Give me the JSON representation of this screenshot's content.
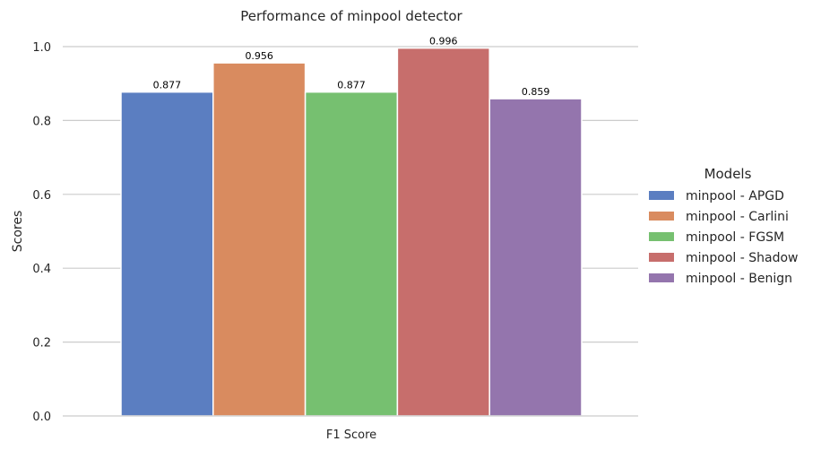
{
  "chart_data": {
    "type": "bar",
    "title": "Performance of minpool detector",
    "xlabel": "",
    "ylabel": "Scores",
    "categories": [
      "F1 Score"
    ],
    "ylim": [
      0,
      1.0
    ],
    "yticks": [
      "0.0",
      "0.2",
      "0.4",
      "0.6",
      "0.8",
      "1.0"
    ],
    "grid": true,
    "legend_title": "Models",
    "legend_position": "right",
    "series": [
      {
        "name": "minpool - APGD",
        "values": [
          0.877
        ],
        "label": "0.877",
        "color": "#5b7ec1"
      },
      {
        "name": "minpool - Carlini",
        "values": [
          0.956
        ],
        "label": "0.956",
        "color": "#d98b5f"
      },
      {
        "name": "minpool - FGSM",
        "values": [
          0.877
        ],
        "label": "0.877",
        "color": "#76c070"
      },
      {
        "name": "minpool - Shadow",
        "values": [
          0.996
        ],
        "label": "0.996",
        "color": "#c76e6c"
      },
      {
        "name": "minpool - Benign",
        "values": [
          0.859
        ],
        "label": "0.859",
        "color": "#9475ad"
      }
    ]
  }
}
